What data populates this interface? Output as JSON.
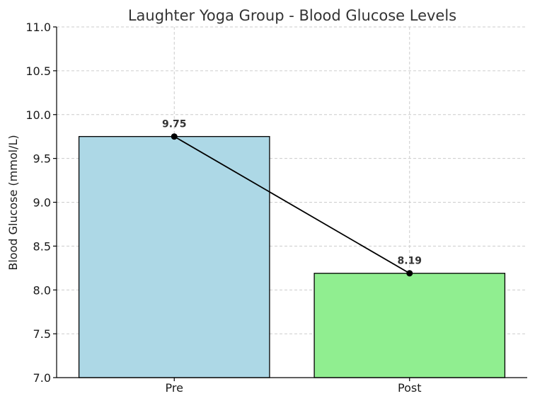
{
  "chart_data": {
    "type": "bar",
    "title": "Laughter Yoga Group - Blood Glucose Levels",
    "xlabel": "",
    "ylabel": "Blood Glucose (mmol/L)",
    "categories": [
      "Pre",
      "Post"
    ],
    "values": [
      9.75,
      8.19
    ],
    "data_labels": [
      "9.75",
      "8.19"
    ],
    "bar_colors": [
      "#add8e6",
      "#90ee90"
    ],
    "bar_edge_color": "#000000",
    "line_color": "#000000",
    "ylim": [
      7.0,
      11.0
    ],
    "yticks": [
      7.0,
      7.5,
      8.0,
      8.5,
      9.0,
      9.5,
      10.0,
      10.5,
      11.0
    ],
    "ytick_labels": [
      "7.0",
      "7.5",
      "8.0",
      "8.5",
      "9.0",
      "9.5",
      "10.0",
      "10.5",
      "11.0"
    ],
    "grid": true,
    "overlay": "line connecting bar tops with markers"
  }
}
